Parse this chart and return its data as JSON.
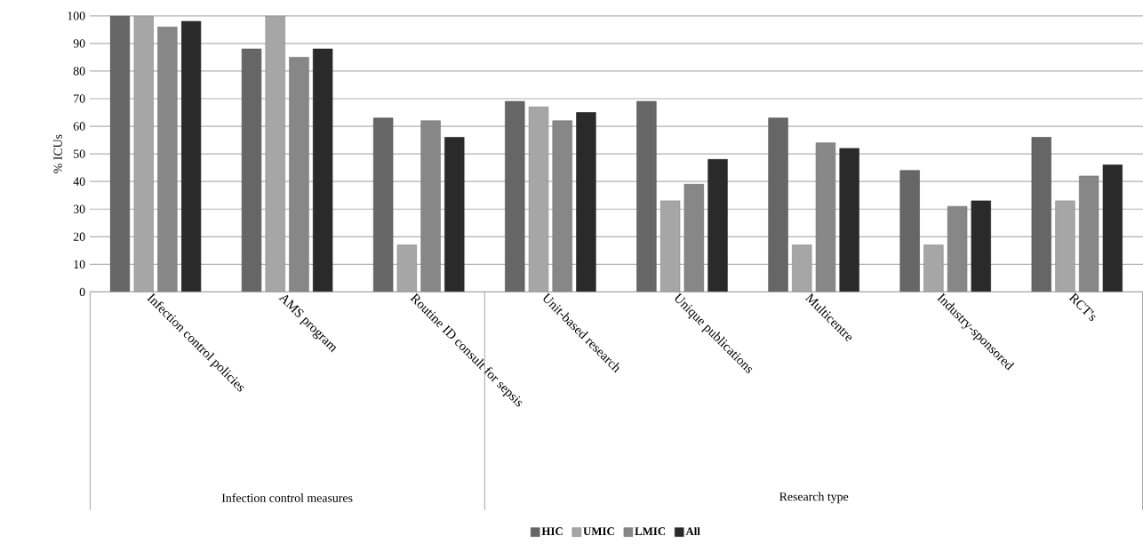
{
  "chart_data": {
    "type": "bar",
    "ylabel": "% ICUs",
    "categories": [
      "Infection control policies",
      "AMS program",
      "Routine ID consult for sepsis",
      "Unit-based research",
      "Unique publications",
      "Multicentre",
      "Industry-sponsored",
      "RCT's"
    ],
    "series": [
      {
        "name": "HIC",
        "color": "#666666",
        "values": [
          100,
          88,
          63,
          69,
          69,
          63,
          44,
          56
        ]
      },
      {
        "name": "UMIC",
        "color": "#a6a6a6",
        "values": [
          100,
          100,
          17,
          67,
          33,
          17,
          17,
          33
        ]
      },
      {
        "name": "LMIC",
        "color": "#878787",
        "values": [
          96,
          85,
          62,
          62,
          39,
          54,
          31,
          42
        ]
      },
      {
        "name": "All",
        "color": "#2a2a2a",
        "values": [
          98,
          88,
          56,
          65,
          48,
          52,
          33,
          46
        ]
      }
    ],
    "annotations": [
      "Infection control measures",
      "Research type"
    ],
    "ylim": [
      0,
      100
    ],
    "yticks": [
      0,
      10,
      20,
      30,
      40,
      50,
      60,
      70,
      80,
      90,
      100
    ],
    "grid": "y",
    "legend": "bottom"
  }
}
